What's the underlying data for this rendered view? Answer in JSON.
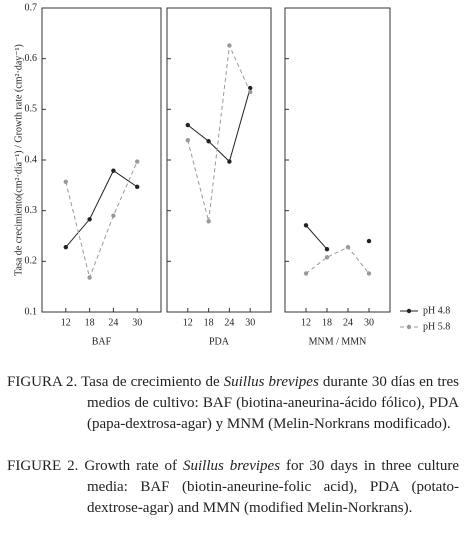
{
  "chart_data": [
    {
      "type": "line",
      "xlabel": "BAF",
      "ylabel": "Tasa de crecimiento(cm²·día⁻¹) / Growth rate (cm²·day⁻¹)",
      "x": [
        12,
        18,
        24,
        30
      ],
      "xlim": [
        6,
        36
      ],
      "xticks": [
        12,
        18,
        24,
        30
      ],
      "ylim": [
        0.1,
        0.7
      ],
      "yticks": [
        0.1,
        0.2,
        0.3,
        0.4,
        0.5,
        0.6,
        0.7
      ],
      "series": [
        {
          "name": "pH 4.8",
          "color": "#222222",
          "linestyle": "solid",
          "values": [
            0.228,
            0.283,
            0.379,
            0.347
          ]
        },
        {
          "name": "pH 5.8",
          "color": "#999999",
          "linestyle": "dashed",
          "values": [
            0.357,
            0.168,
            0.29,
            0.397
          ]
        }
      ]
    },
    {
      "type": "line",
      "xlabel": "PDA",
      "x": [
        12,
        18,
        24,
        30
      ],
      "xlim": [
        6,
        36
      ],
      "xticks": [
        12,
        18,
        24,
        30
      ],
      "ylim": [
        0.1,
        0.7
      ],
      "yticks": [
        0.1,
        0.2,
        0.3,
        0.4,
        0.5,
        0.6,
        0.7
      ],
      "series": [
        {
          "name": "pH 4.8",
          "color": "#222222",
          "linestyle": "solid",
          "values": [
            0.469,
            0.437,
            0.397,
            0.542
          ]
        },
        {
          "name": "pH 5.8",
          "color": "#999999",
          "linestyle": "dashed",
          "values": [
            0.439,
            0.279,
            0.626,
            0.534
          ]
        }
      ]
    },
    {
      "type": "line",
      "xlabel": "MNM / MMN",
      "x": [
        12,
        18,
        24,
        30
      ],
      "xlim": [
        6,
        36
      ],
      "xticks": [
        12,
        18,
        24,
        30
      ],
      "ylim": [
        0.1,
        0.7
      ],
      "yticks": [
        0.1,
        0.2,
        0.3,
        0.4,
        0.5,
        0.6,
        0.7
      ],
      "legend": "right",
      "series": [
        {
          "name": "pH 4.8",
          "color": "#222222",
          "linestyle": "solid",
          "values": [
            0.271,
            0.224,
            null,
            0.24
          ]
        },
        {
          "name": "pH 5.8",
          "color": "#999999",
          "linestyle": "dashed",
          "values": [
            0.176,
            0.208,
            0.228,
            0.176
          ]
        }
      ]
    }
  ],
  "caption": [
    {
      "label": "FIGURA 2.",
      "before": "Tasa de crecimiento de",
      "species": "Suillus brevipes",
      "after": "durante 30 días en tres medios de cultivo: BAF (biotina-aneurina-ácido fólico), PDA (papa-dextrosa-agar) y MNM (Melin-Norkrans modificado)."
    },
    {
      "label": "FIGURE 2.",
      "before": "Growth rate of",
      "species": "Suillus brevipes",
      "after": "for 30 days in three culture media: BAF (biotin-aneurine-folic acid), PDA (potato-dextrose-agar) and MMN (modified Melin-Norkrans)."
    }
  ]
}
